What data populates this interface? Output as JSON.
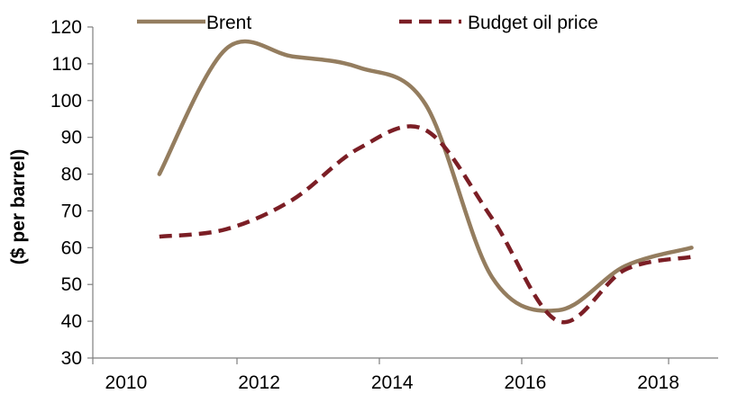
{
  "chart_data": {
    "type": "line",
    "title": "",
    "xlabel": "",
    "ylabel": "($ per barrel)",
    "xlim": [
      2009.5,
      2018.9
    ],
    "ylim": [
      30,
      120
    ],
    "x_ticks": [
      2010,
      2012,
      2014,
      2016,
      2018
    ],
    "x_tick_labels": [
      "2010",
      "2012",
      "2014",
      "2016",
      "2018"
    ],
    "y_ticks": [
      30,
      40,
      50,
      60,
      70,
      80,
      90,
      100,
      110,
      120
    ],
    "y_tick_labels": [
      "30",
      "40",
      "50",
      "60",
      "70",
      "80",
      "90",
      "100",
      "110",
      "120"
    ],
    "grid": false,
    "legend_position": "top",
    "series": [
      {
        "name": "Brent",
        "style": "solid",
        "color": "#947d5f",
        "x": [
          2010.5,
          2011.5,
          2012.5,
          2013.5,
          2014.5,
          2015.5,
          2016.5,
          2017.5,
          2018.5
        ],
        "y": [
          80,
          114,
          112,
          109,
          99,
          52,
          43,
          55,
          60
        ]
      },
      {
        "name": "Budget oil price",
        "style": "dashed",
        "color": "#7b1e25",
        "x": [
          2010.5,
          2011.5,
          2012.5,
          2013.5,
          2014.5,
          2015.5,
          2016.5,
          2017.5,
          2018.5
        ],
        "y": [
          63,
          65,
          73,
          87,
          92,
          68,
          40,
          54,
          57.5
        ]
      }
    ]
  }
}
